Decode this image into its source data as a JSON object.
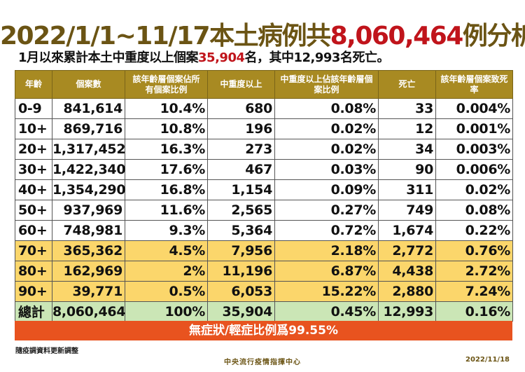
{
  "title": {
    "prefix": "2022/1/1~11/17本土病例共",
    "count": "8,060,464",
    "suffix": "例分析"
  },
  "subtitle": {
    "prefix": "1月以來累計本土中重度以上個案",
    "severe": "35,904",
    "suffix": "名，其中12,993名死亡。"
  },
  "headers": [
    "年齡",
    "個案數",
    "該年齡層個案佔所有個案比例",
    "中重度以上",
    "中重度以上佔該年齡層個案比例",
    "死亡",
    "該年齡層個案致死率"
  ],
  "rows": [
    [
      "0-9",
      "841,614",
      "10.4%",
      "680",
      "0.08%",
      "33",
      "0.004%"
    ],
    [
      "10+",
      "869,716",
      "10.8%",
      "196",
      "0.02%",
      "12",
      "0.001%"
    ],
    [
      "20+",
      "1,317,452",
      "16.3%",
      "273",
      "0.02%",
      "34",
      "0.003%"
    ],
    [
      "30+",
      "1,422,340",
      "17.6%",
      "467",
      "0.03%",
      "90",
      "0.006%"
    ],
    [
      "40+",
      "1,354,290",
      "16.8%",
      "1,154",
      "0.09%",
      "311",
      "0.02%"
    ],
    [
      "50+",
      "937,969",
      "11.6%",
      "2,565",
      "0.27%",
      "749",
      "0.08%"
    ],
    [
      "60+",
      "748,981",
      "9.3%",
      "5,364",
      "0.72%",
      "1,674",
      "0.22%"
    ],
    [
      "70+",
      "365,362",
      "4.5%",
      "7,956",
      "2.18%",
      "2,772",
      "0.76%"
    ],
    [
      "80+",
      "162,969",
      "2%",
      "11,196",
      "6.87%",
      "4,438",
      "2.72%"
    ],
    [
      "90+",
      "39,771",
      "0.5%",
      "6,053",
      "15.22%",
      "2,880",
      "7.24%"
    ]
  ],
  "total": [
    "總計",
    "8,060,464",
    "100%",
    "35,904",
    "0.45%",
    "12,993",
    "0.16%"
  ],
  "banner": "無症狀/輕症比例爲99.55%",
  "footer": {
    "note": "隨疫調資料更新調整",
    "center": "中央流行疫情指揮中心",
    "date": "2022/11/18"
  },
  "colors": {
    "header": "#a88a22",
    "highlight": "#fbd66b",
    "total": "#cbe6b6",
    "banner": "#e8531f",
    "accent": "#c0141b"
  }
}
